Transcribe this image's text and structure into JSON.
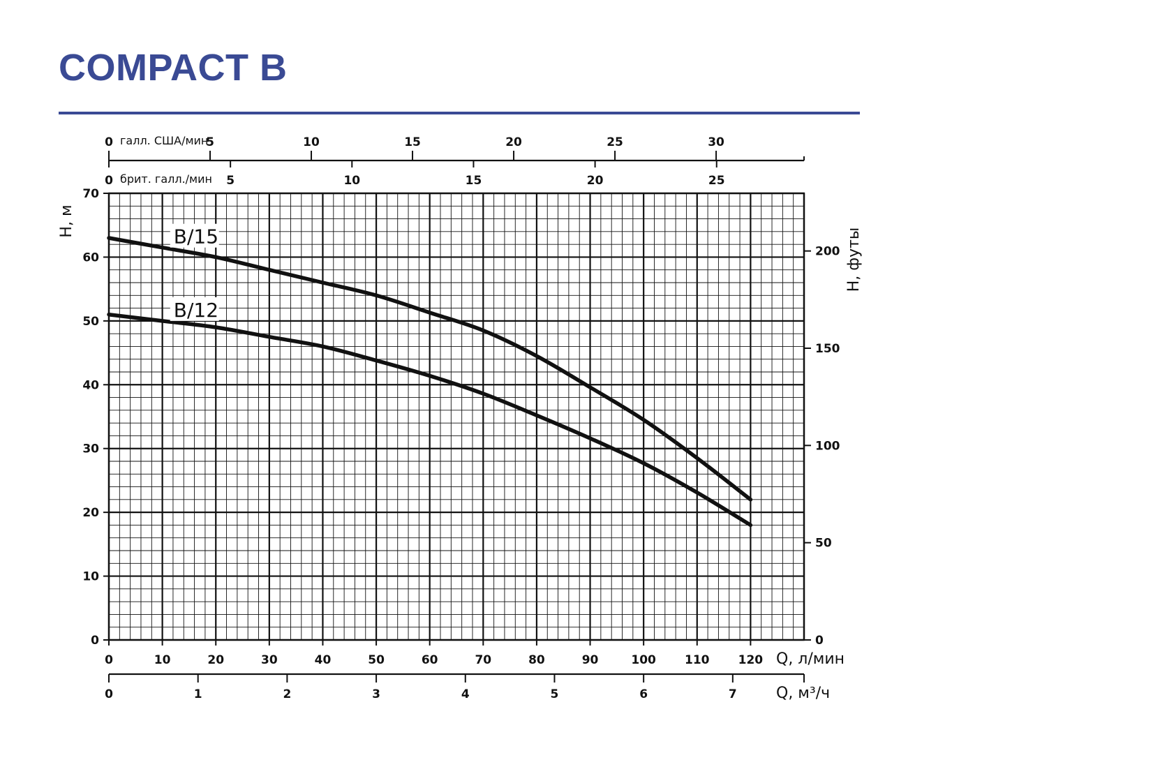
{
  "title": "COMPACT B",
  "colors": {
    "title": "#3a4a94",
    "curve": "#111111",
    "grid": "#111111"
  },
  "chart_data": {
    "type": "line",
    "title": "COMPACT B",
    "grid": true,
    "x": {
      "label": "Q, л/мин",
      "range": [
        0,
        130
      ],
      "ticks": [
        0,
        10,
        20,
        30,
        40,
        50,
        60,
        70,
        80,
        90,
        100,
        110,
        120
      ]
    },
    "y": {
      "label": "H, м",
      "range": [
        0,
        70
      ],
      "ticks": [
        0,
        10,
        20,
        30,
        40,
        50,
        60,
        70
      ]
    },
    "y_right": {
      "label": "H, футы",
      "ticks": [
        0,
        50,
        100,
        150,
        200
      ]
    },
    "x_m3h": {
      "label": "Q, м³/ч",
      "ticks": [
        0,
        1,
        2,
        3,
        4,
        5,
        6,
        7
      ]
    },
    "x_usgpm": {
      "label": "галл. США/мин",
      "ticks": [
        0,
        5,
        10,
        15,
        20,
        25,
        30
      ]
    },
    "x_impgpm": {
      "label": "брит. галл./мин",
      "ticks": [
        0,
        5,
        10,
        15,
        20,
        25
      ]
    },
    "series": [
      {
        "name": "B/15",
        "x": [
          0,
          10,
          20,
          30,
          40,
          50,
          60,
          70,
          80,
          90,
          100,
          110,
          120
        ],
        "y": [
          63,
          61.5,
          60,
          58,
          56,
          54,
          51.3,
          48.5,
          44.5,
          39.6,
          34.5,
          28.5,
          22
        ]
      },
      {
        "name": "B/12",
        "x": [
          0,
          10,
          20,
          30,
          40,
          50,
          60,
          70,
          80,
          90,
          100,
          110,
          120
        ],
        "y": [
          51,
          50,
          49,
          47.5,
          46,
          43.8,
          41.4,
          38.6,
          35.2,
          31.6,
          27.7,
          23.1,
          18
        ]
      }
    ]
  }
}
